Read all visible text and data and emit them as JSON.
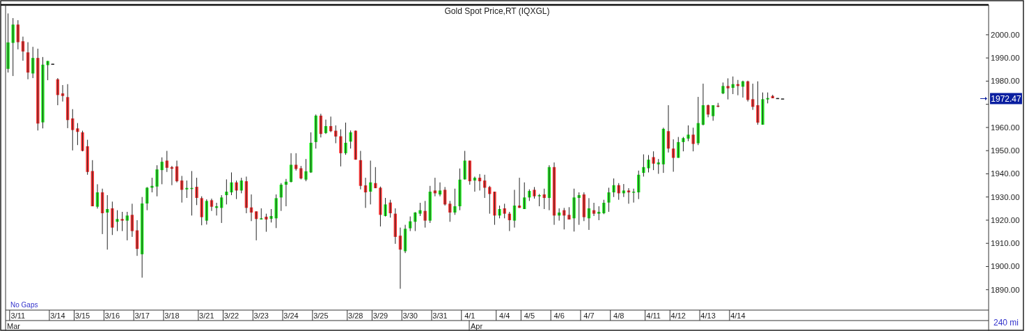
{
  "chart_data": {
    "type": "candlestick",
    "title": "Gold Spot Price,RT  (IQXGL)",
    "colors": [
      "#22ee22",
      "#22ee22",
      "#ff3333",
      "#ff3333",
      "#ff3333",
      "#22ee22",
      "#ff3333",
      "#22ee22",
      "#22ee22",
      "#222222",
      "#ff3333",
      "#ff3333",
      "#ff3333",
      "#ff3333",
      "#ff3333",
      "#ff3333",
      "#ff3333",
      "#ff3333",
      "#22ee22",
      "#ff3333",
      "#22ee22",
      "#ff3333",
      "#22ee22",
      "#ff3333",
      "#22ee22",
      "#ff3333",
      "#ff3333",
      "#22ee22",
      "#22ee22",
      "#22ee22",
      "#22ee22",
      "#22ee22",
      "#ff3333",
      "#ff3333",
      "#ff3333",
      "#ff3333",
      "#22ee22",
      "#22ee22",
      "#ff3333",
      "#ff3333",
      "#22ee22",
      "#ff3333",
      "#22ee22",
      "#22ee22",
      "#22ee22",
      "#22ee22",
      "#ff3333",
      "#22ee22",
      "#ff3333",
      "#ff3333",
      "#ff3333",
      "#22ee22",
      "#ff3333",
      "#22ee22",
      "#22ee22",
      "#22ee22",
      "#22ee22",
      "#22ee22",
      "#ff3333",
      "#ff3333",
      "#22ee22",
      "#22ee22",
      "#22ee22",
      "#ff3333",
      "#22ee22",
      "#ff3333",
      "#ff3333",
      "#ff3333",
      "#22ee22",
      "#22ee22",
      "#ff3333",
      "#ff3333",
      "#ff3333",
      "#22ee22",
      "#ff3333",
      "#ff3333",
      "#22ee22",
      "#ff3333",
      "#ff3333",
      "#ff3333",
      "#22ee22",
      "#22ee22",
      "#22ee22",
      "#22ee22",
      "#ff3333",
      "#22ee22",
      "#ff3333",
      "#22ee22",
      "#ff3333",
      "#ff3333",
      "#22ee22",
      "#22ee22",
      "#22ee22",
      "#ff3333",
      "#22ee22",
      "#ff3333",
      "#ff3333",
      "#ff3333",
      "#ff3333",
      "#22ee22",
      "#ff3333",
      "#ff3333",
      "#22ee22",
      "#ff3333",
      "#22ee22",
      "#22ee22",
      "#ff3333",
      "#22ee22",
      "#ff3333",
      "#22ee22",
      "#ff3333",
      "#22ee22",
      "#ff3333",
      "#ff3333",
      "#22ee22",
      "#22ee22",
      "#ff3333",
      "#22ee22",
      "#ff3333",
      "#22ee22",
      "#22ee22",
      "#22ee22",
      "#22ee22",
      "#ff3333",
      "#22ee22",
      "#ff3333",
      "#22ee22",
      "#22ee22",
      "#22ee22",
      "#22ee22",
      "#ff3333",
      "#22ee22",
      "#22ee22",
      "#ff3333",
      "#ff3333",
      "#22ee22",
      "#22ee22",
      "#22ee22",
      "#ff3333",
      "#22ee22",
      "#22ee22",
      "#ff3333",
      "#22ee22",
      "#ff3333",
      "#22ee22",
      "#ff3333",
      "#22ee22",
      "#ff3333",
      "#22ee22",
      "#ff3333",
      "#ff3333",
      "#ff3333",
      "#22ee22",
      "#22ee22",
      "#ff3333",
      "#222222",
      "#222222",
      null,
      null,
      null,
      null,
      null,
      null,
      null,
      null,
      null,
      null,
      null,
      null,
      null,
      null,
      null,
      null,
      null,
      null,
      null,
      null,
      null,
      null,
      null,
      null,
      null,
      null,
      null,
      null,
      null,
      null,
      null,
      null,
      null,
      null,
      null,
      null,
      null,
      null,
      null,
      null,
      null
    ],
    "categories": [
      null,
      null,
      "3/11",
      null,
      null,
      null,
      null,
      null,
      null,
      null,
      "3/14",
      null,
      null,
      null,
      null,
      "3/15",
      null,
      null,
      null,
      null,
      null,
      "3/16",
      null,
      null,
      null,
      null,
      null,
      "3/17",
      null,
      null,
      null,
      null,
      null,
      "3/18",
      null,
      null,
      null,
      null,
      null,
      null,
      "3/21",
      null,
      null,
      null,
      null,
      "3/22",
      null,
      null,
      null,
      null,
      null,
      "3/23",
      null,
      null,
      null,
      null,
      null,
      "3/24",
      null,
      null,
      null,
      null,
      null,
      "3/25",
      null,
      null,
      null,
      null,
      null,
      null,
      "3/28",
      null,
      null,
      null,
      null,
      "3/29",
      null,
      null,
      null,
      null,
      null,
      "3/30",
      null,
      null,
      null,
      null,
      null,
      "3/31",
      null,
      null,
      null,
      null,
      null,
      "4/1",
      null,
      null,
      null,
      null,
      null,
      null,
      "4/4",
      null,
      null,
      null,
      null,
      "4/5",
      null,
      null,
      null,
      null,
      null,
      "4/6",
      null,
      null,
      null,
      null,
      null,
      "4/7",
      null,
      null,
      null,
      null,
      null,
      "4/8",
      null,
      null,
      null,
      null,
      null,
      null,
      "4/11",
      null,
      null,
      null,
      null,
      "4/12",
      null,
      null,
      null,
      null,
      null,
      "4/13",
      null,
      null,
      null,
      null,
      null,
      "4/14",
      null,
      null,
      null,
      null,
      null,
      null,
      null,
      null,
      null,
      null,
      null,
      null,
      null,
      null,
      null,
      null,
      null,
      null,
      null,
      null,
      null,
      null,
      null,
      null,
      null,
      null,
      null,
      null,
      null,
      null,
      null,
      null,
      null,
      null,
      null,
      null,
      null,
      null,
      null,
      null,
      null,
      null,
      null,
      null,
      null,
      null,
      null,
      null,
      null,
      null
    ],
    "ohlc": [
      [
        1985.3,
        2009.2,
        1983.7,
        1996.7
      ],
      [
        1996.5,
        2007.2,
        1982.2,
        2004.4
      ],
      [
        2004.4,
        2006.3,
        1993.7,
        1996.8
      ],
      [
        1997.2,
        1999.2,
        1988.8,
        1992.8
      ],
      [
        1992.4,
        1996.8,
        1980.8,
        1983.7
      ],
      [
        1983.3,
        1994.8,
        1981.3,
        1990.0
      ],
      [
        1990.0,
        1994.0,
        1958.7,
        1961.7
      ],
      [
        1962.2,
        1990.4,
        1959.6,
        1987.1
      ],
      [
        1986.9,
        1988.7,
        1980.4,
        1988.7
      ],
      [
        1987.5,
        1987.5,
        1987.4,
        1987.4
      ],
      [
        1980.8,
        1981.3,
        1969.6,
        1974.0
      ],
      [
        1974.7,
        1978.3,
        1971.2,
        1973.6
      ],
      [
        1973.1,
        1978.7,
        1959.7,
        1963.2
      ],
      [
        1963.9,
        1967.9,
        1950.1,
        1958.9
      ],
      [
        1959.6,
        1961.9,
        1952.4,
        1958.1
      ],
      [
        1957.9,
        1958.6,
        1949.7,
        1949.9
      ],
      [
        1951.9,
        1954.7,
        1939.6,
        1940.8
      ],
      [
        1941.2,
        1945.9,
        1926.0,
        1926.0
      ],
      [
        1925.8,
        1935.5,
        1925.0,
        1932.0
      ],
      [
        1932.0,
        1933.6,
        1914.0,
        1923.0
      ],
      [
        1923.3,
        1930.8,
        1907.3,
        1924.8
      ],
      [
        1925.1,
        1928.0,
        1913.6,
        1916.8
      ],
      [
        1919.3,
        1924.3,
        1915.3,
        1920.5
      ],
      [
        1920.5,
        1923.6,
        1915.3,
        1919.8
      ],
      [
        1919.8,
        1923.6,
        1911.3,
        1922.0
      ],
      [
        1922.3,
        1927.1,
        1912.8,
        1915.3
      ],
      [
        1915.6,
        1920.0,
        1904.6,
        1907.6
      ],
      [
        1905.3,
        1930.0,
        1895.2,
        1927.2
      ],
      [
        1927.2,
        1934.3,
        1924.3,
        1934.0
      ],
      [
        1934.0,
        1938.3,
        1932.0,
        1934.8
      ],
      [
        1934.5,
        1943.7,
        1930.3,
        1941.9
      ],
      [
        1941.6,
        1947.1,
        1935.5,
        1945.2
      ],
      [
        1945.7,
        1949.9,
        1940.8,
        1942.6
      ],
      [
        1942.9,
        1943.4,
        1935.1,
        1942.2
      ],
      [
        1943.2,
        1945.7,
        1936.3,
        1936.8
      ],
      [
        1937.1,
        1939.1,
        1927.6,
        1933.1
      ],
      [
        1933.3,
        1937.1,
        1929.6,
        1933.9
      ],
      [
        1933.5,
        1941.2,
        1922.0,
        1933.9
      ],
      [
        1934.4,
        1938.3,
        1926.5,
        1929.6
      ],
      [
        1929.5,
        1930.3,
        1917.8,
        1921.3
      ],
      [
        1919.8,
        1929.0,
        1918.1,
        1928.3
      ],
      [
        1928.6,
        1929.3,
        1924.0,
        1925.8
      ],
      [
        1925.3,
        1927.5,
        1922.0,
        1926.0
      ],
      [
        1925.3,
        1930.8,
        1918.8,
        1929.8
      ],
      [
        1930.8,
        1937.6,
        1926.8,
        1932.3
      ],
      [
        1932.0,
        1940.6,
        1930.8,
        1936.3
      ],
      [
        1936.3,
        1937.1,
        1929.1,
        1932.8
      ],
      [
        1932.8,
        1938.3,
        1931.6,
        1937.1
      ],
      [
        1936.8,
        1938.8,
        1923.0,
        1925.3
      ],
      [
        1925.5,
        1931.1,
        1919.6,
        1923.3
      ],
      [
        1923.8,
        1923.8,
        1911.3,
        1920.5
      ],
      [
        1920.3,
        1925.1,
        1920.3,
        1920.8
      ],
      [
        1921.5,
        1922.8,
        1915.0,
        1920.3
      ],
      [
        1920.6,
        1924.8,
        1919.0,
        1921.8
      ],
      [
        1920.8,
        1931.1,
        1916.6,
        1929.5
      ],
      [
        1929.8,
        1936.0,
        1924.0,
        1935.3
      ],
      [
        1935.3,
        1937.8,
        1926.0,
        1936.6
      ],
      [
        1936.5,
        1948.9,
        1936.3,
        1943.9
      ],
      [
        1943.9,
        1948.9,
        1941.4,
        1942.1
      ],
      [
        1942.4,
        1943.4,
        1937.6,
        1938.0
      ],
      [
        1937.5,
        1946.4,
        1936.8,
        1941.1
      ],
      [
        1940.6,
        1957.9,
        1940.4,
        1953.4
      ],
      [
        1953.7,
        1965.6,
        1950.9,
        1965.1
      ],
      [
        1965.1,
        1965.9,
        1955.7,
        1957.2
      ],
      [
        1957.6,
        1963.4,
        1957.2,
        1960.6
      ],
      [
        1960.6,
        1964.7,
        1958.0,
        1958.4
      ],
      [
        1958.6,
        1960.9,
        1953.2,
        1956.1
      ],
      [
        1956.2,
        1959.2,
        1943.2,
        1948.9
      ],
      [
        1948.9,
        1962.1,
        1948.2,
        1953.4
      ],
      [
        1953.9,
        1958.7,
        1950.9,
        1957.9
      ],
      [
        1958.6,
        1958.7,
        1946.1,
        1946.1
      ],
      [
        1945.9,
        1949.9,
        1933.3,
        1934.8
      ],
      [
        1935.0,
        1938.3,
        1925.3,
        1932.0
      ],
      [
        1932.3,
        1945.7,
        1926.8,
        1936.3
      ],
      [
        1936.0,
        1942.9,
        1933.8,
        1933.8
      ],
      [
        1934.0,
        1934.5,
        1917.3,
        1922.3
      ],
      [
        1921.8,
        1929.6,
        1921.6,
        1926.8
      ],
      [
        1927.6,
        1928.8,
        1921.1,
        1923.0
      ],
      [
        1922.8,
        1925.1,
        1909.8,
        1912.8
      ],
      [
        1913.3,
        1916.8,
        1890.4,
        1907.3
      ],
      [
        1906.6,
        1918.0,
        1905.8,
        1916.3
      ],
      [
        1916.5,
        1921.6,
        1915.3,
        1919.5
      ],
      [
        1919.3,
        1923.5,
        1915.3,
        1923.3
      ],
      [
        1922.8,
        1927.5,
        1921.8,
        1924.3
      ],
      [
        1924.0,
        1928.3,
        1916.8,
        1919.8
      ],
      [
        1919.8,
        1934.8,
        1918.8,
        1932.3
      ],
      [
        1932.8,
        1938.3,
        1930.3,
        1931.6
      ],
      [
        1931.1,
        1936.3,
        1930.3,
        1932.8
      ],
      [
        1933.1,
        1934.3,
        1926.3,
        1926.8
      ],
      [
        1927.1,
        1928.3,
        1919.3,
        1923.3
      ],
      [
        1923.3,
        1933.6,
        1922.3,
        1926.0
      ],
      [
        1926.0,
        1942.3,
        1924.3,
        1937.5
      ],
      [
        1937.6,
        1949.9,
        1937.5,
        1945.7
      ],
      [
        1945.7,
        1945.7,
        1935.3,
        1936.8
      ],
      [
        1937.1,
        1938.8,
        1932.3,
        1938.3
      ],
      [
        1938.3,
        1939.9,
        1932.8,
        1936.8
      ],
      [
        1937.1,
        1939.6,
        1929.6,
        1934.0
      ],
      [
        1934.3,
        1934.8,
        1922.8,
        1931.3
      ],
      [
        1932.3,
        1932.3,
        1918.0,
        1922.0
      ],
      [
        1922.0,
        1926.3,
        1920.8,
        1924.8
      ],
      [
        1925.1,
        1927.1,
        1920.8,
        1922.8
      ],
      [
        1922.8,
        1923.6,
        1915.3,
        1920.0
      ],
      [
        1919.8,
        1933.1,
        1916.8,
        1926.3
      ],
      [
        1926.3,
        1938.3,
        1925.3,
        1925.3
      ],
      [
        1924.8,
        1936.3,
        1924.8,
        1929.8
      ],
      [
        1929.8,
        1933.3,
        1928.3,
        1932.6
      ],
      [
        1933.1,
        1934.3,
        1929.3,
        1930.3
      ],
      [
        1930.3,
        1931.3,
        1926.0,
        1930.8
      ],
      [
        1931.1,
        1933.6,
        1924.8,
        1929.6
      ],
      [
        1929.6,
        1943.7,
        1924.3,
        1942.9
      ],
      [
        1942.9,
        1944.9,
        1918.0,
        1922.0
      ],
      [
        1922.0,
        1925.1,
        1919.8,
        1923.3
      ],
      [
        1924.3,
        1925.3,
        1916.0,
        1922.0
      ],
      [
        1922.3,
        1925.6,
        1920.3,
        1920.3
      ],
      [
        1920.8,
        1933.6,
        1915.1,
        1929.8
      ],
      [
        1929.6,
        1932.0,
        1918.0,
        1930.8
      ],
      [
        1931.1,
        1932.0,
        1919.6,
        1921.3
      ],
      [
        1920.8,
        1929.5,
        1915.8,
        1925.1
      ],
      [
        1924.3,
        1927.5,
        1921.8,
        1922.8
      ],
      [
        1922.8,
        1926.0,
        1920.0,
        1923.6
      ],
      [
        1923.0,
        1928.8,
        1922.6,
        1927.5
      ],
      [
        1927.6,
        1934.0,
        1923.6,
        1932.0
      ],
      [
        1932.0,
        1938.0,
        1930.0,
        1935.1
      ],
      [
        1935.1,
        1936.0,
        1928.8,
        1931.6
      ],
      [
        1931.6,
        1935.6,
        1930.0,
        1932.8
      ],
      [
        1932.8,
        1933.8,
        1927.1,
        1932.0
      ],
      [
        1932.0,
        1933.6,
        1927.6,
        1932.3
      ],
      [
        1932.0,
        1941.4,
        1929.1,
        1939.6
      ],
      [
        1940.4,
        1948.4,
        1938.8,
        1942.9
      ],
      [
        1942.4,
        1948.1,
        1940.6,
        1946.1
      ],
      [
        1947.2,
        1949.7,
        1941.6,
        1944.4
      ],
      [
        1944.1,
        1946.4,
        1940.0,
        1944.9
      ],
      [
        1944.1,
        1959.9,
        1940.4,
        1959.4
      ],
      [
        1958.4,
        1969.6,
        1949.2,
        1950.9
      ],
      [
        1950.9,
        1954.9,
        1940.9,
        1946.9
      ],
      [
        1946.9,
        1955.9,
        1946.9,
        1953.7
      ],
      [
        1953.7,
        1955.9,
        1949.7,
        1955.4
      ],
      [
        1955.2,
        1960.9,
        1954.1,
        1956.9
      ],
      [
        1956.9,
        1959.9,
        1949.7,
        1952.9
      ],
      [
        1953.2,
        1973.2,
        1952.4,
        1961.9
      ],
      [
        1961.2,
        1978.9,
        1960.9,
        1969.6
      ],
      [
        1969.6,
        1969.9,
        1964.4,
        1965.6
      ],
      [
        1964.9,
        1969.6,
        1962.9,
        1969.6
      ],
      [
        1969.4,
        1970.6,
        1968.7,
        1969.1
      ],
      [
        1974.7,
        1979.4,
        1974.4,
        1977.9
      ],
      [
        1977.9,
        1981.2,
        1972.1,
        1976.9
      ],
      [
        1977.1,
        1982.0,
        1974.4,
        1978.7
      ],
      [
        1978.7,
        1980.5,
        1973.9,
        1977.9
      ],
      [
        1977.6,
        1980.2,
        1972.9,
        1979.9
      ],
      [
        1979.9,
        1980.2,
        1971.2,
        1971.9
      ],
      [
        1972.2,
        1978.9,
        1967.6,
        1968.9
      ],
      [
        1969.6,
        1979.9,
        1961.2,
        1962.1
      ],
      [
        1961.2,
        1975.1,
        1961.2,
        1972.2
      ],
      [
        1972.1,
        1975.1,
        1970.4,
        1972.7
      ],
      [
        1973.6,
        1974.1,
        1972.6,
        1972.6
      ],
      [
        1972.7,
        1972.7,
        1972.6,
        1972.6
      ],
      [
        1972.5,
        1972.5,
        1972.47,
        1972.47
      ],
      null,
      null,
      null,
      null,
      null,
      null,
      null,
      null,
      null,
      null,
      null,
      null,
      null,
      null,
      null,
      null,
      null,
      null,
      null,
      null,
      null,
      null,
      null,
      null,
      null,
      null,
      null,
      null,
      null,
      null,
      null,
      null,
      null,
      null,
      null,
      null,
      null,
      null,
      null,
      null,
      null
    ],
    "ylim": [
      1881.2,
      2012.9
    ],
    "yticks": [
      {
        "value": 1890,
        "label": "1890.00"
      },
      {
        "value": 1900,
        "label": "1900.00"
      },
      {
        "value": 1910,
        "label": "1910.00"
      },
      {
        "value": 1920,
        "label": "1920.00"
      },
      {
        "value": 1930,
        "label": "1930.00"
      },
      {
        "value": 1940,
        "label": "1940.00"
      },
      {
        "value": 1950,
        "label": "1950.00"
      },
      {
        "value": 1960,
        "label": "1960.00"
      },
      {
        "value": 1970,
        "label": null
      },
      {
        "value": 1980,
        "label": "1980.00"
      },
      {
        "value": 1990,
        "label": "1990.00"
      },
      {
        "value": 2000,
        "label": "2000.00"
      }
    ],
    "ref_lines": [
      {
        "axis": "y",
        "value": 1972.47,
        "label": "1972.47",
        "color": "#0a1fa0"
      }
    ],
    "annotations": [
      "No Gaps",
      "240 mi",
      "Mar",
      "Apr"
    ]
  }
}
